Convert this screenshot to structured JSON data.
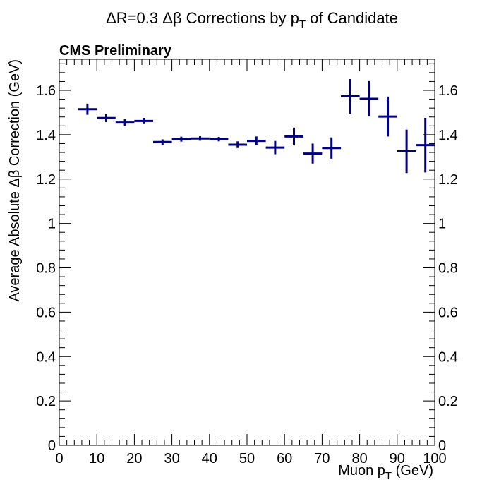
{
  "chart_data": {
    "type": "scatter",
    "title": "ΔR=0.3 Δβ Corrections by p",
    "title_sub": "T",
    "title_suffix": " of Candidate",
    "label": "CMS Preliminary",
    "xlabel": "Muon p",
    "xlabel_sub": "T",
    "xlabel_suffix": " (GeV)",
    "ylabel": "Average Absolute Δβ Correction (GeV)",
    "xlim": [
      0,
      100
    ],
    "ylim": [
      0,
      1.74
    ],
    "x_ticks": [
      0,
      10,
      20,
      30,
      40,
      50,
      60,
      70,
      80,
      90,
      100
    ],
    "x_tick_labels": [
      "0",
      "10",
      "20",
      "30",
      "40",
      "50",
      "60",
      "70",
      "80",
      "90",
      "100"
    ],
    "y_ticks": [
      0,
      0.2,
      0.4,
      0.6,
      0.8,
      1,
      1.2,
      1.4,
      1.6
    ],
    "y_tick_labels": [
      "0",
      "0.2",
      "0.4",
      "0.6",
      "0.8",
      "1",
      "1.2",
      "1.4",
      "1.6"
    ],
    "grid": false,
    "marker_color": "#00007f",
    "series": [
      {
        "x": [
          7.5,
          12.5,
          17.5,
          22.5,
          27.5,
          32.5,
          37.5,
          42.5,
          47.5,
          52.5,
          57.5,
          62.5,
          67.5,
          72.5,
          77.5,
          82.5,
          87.5,
          92.5,
          97.5
        ],
        "x_err": 2.5,
        "y": [
          1.515,
          1.475,
          1.455,
          1.462,
          1.367,
          1.38,
          1.383,
          1.38,
          1.355,
          1.372,
          1.342,
          1.392,
          1.315,
          1.34,
          1.573,
          1.562,
          1.482,
          1.325,
          1.353
        ],
        "y_err": [
          0.025,
          0.018,
          0.015,
          0.014,
          0.012,
          0.011,
          0.01,
          0.01,
          0.015,
          0.02,
          0.03,
          0.04,
          0.045,
          0.048,
          0.078,
          0.08,
          0.09,
          0.098,
          0.123
        ]
      }
    ]
  }
}
